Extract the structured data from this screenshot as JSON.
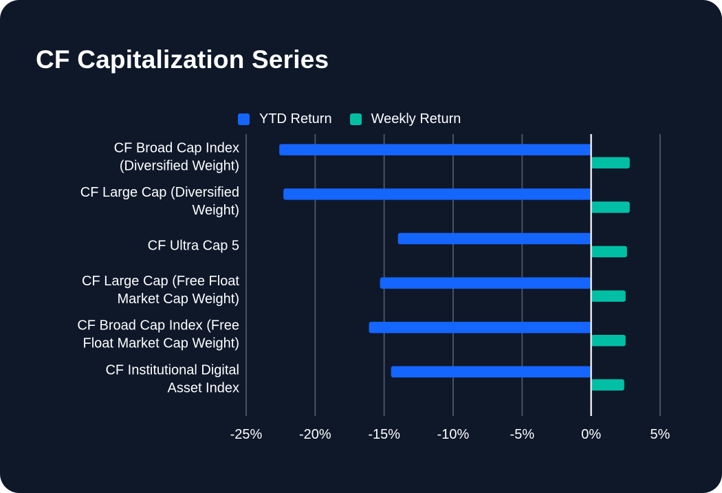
{
  "title": "CF Capitalization Series",
  "colors": {
    "ytd": "#1565ff",
    "weekly": "#00bfa5",
    "grid": "#4a5260",
    "zero": "#e6e8ec",
    "background": "#0e1829"
  },
  "chart_data": {
    "type": "bar",
    "orientation": "horizontal",
    "title": "CF Capitalization Series",
    "categories": [
      [
        "CF Broad Cap Index",
        "(Diversified Weight)"
      ],
      [
        "CF Large Cap (Diversified",
        "Weight)"
      ],
      [
        "CF Ultra Cap 5"
      ],
      [
        "CF Large Cap (Free Float",
        "Market Cap Weight)"
      ],
      [
        "CF Broad Cap Index (Free",
        "Float Market Cap Weight)"
      ],
      [
        "CF Institutional Digital",
        "Asset Index"
      ]
    ],
    "series": [
      {
        "name": "YTD Return",
        "values": [
          -22.6,
          -22.3,
          -14.0,
          -15.3,
          -16.1,
          -14.5
        ]
      },
      {
        "name": "Weekly Return",
        "values": [
          2.8,
          2.8,
          2.6,
          2.5,
          2.5,
          2.4
        ]
      }
    ],
    "xlim": [
      -25,
      5
    ],
    "xticks": [
      -25,
      -20,
      -15,
      -10,
      -5,
      0,
      5
    ],
    "xtick_labels": [
      "-25%",
      "-20%",
      "-15%",
      "-10%",
      "-5%",
      "0%",
      "5%"
    ],
    "xlabel": "",
    "ylabel": "",
    "grid": true,
    "legend_position": "top"
  }
}
